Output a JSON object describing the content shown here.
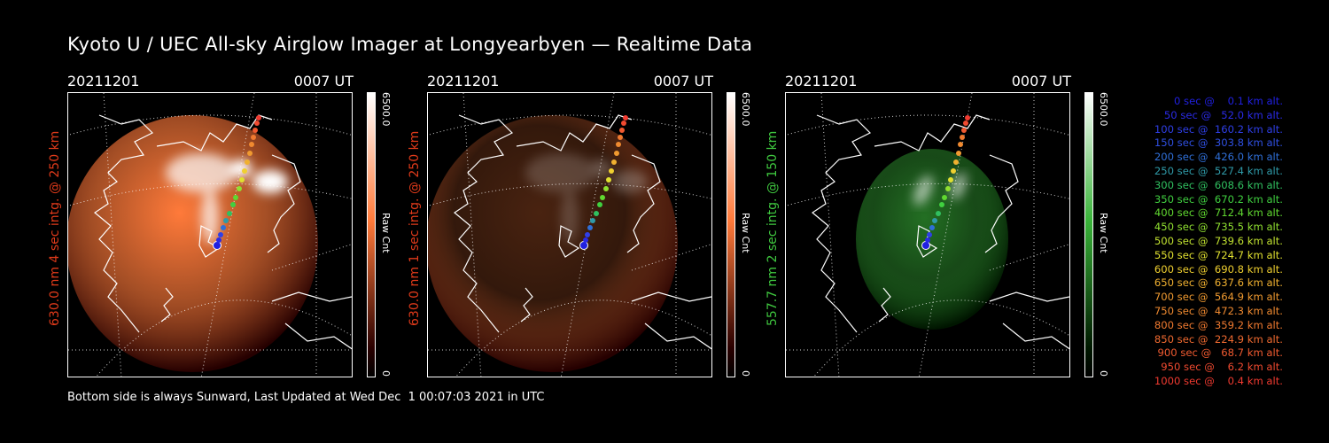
{
  "title": "Kyoto U / UEC All-sky Airglow Imager at Longyearbyen — Realtime Data",
  "panels": [
    {
      "date": "20211201",
      "time": "0007 UT",
      "side_label": "630.0 nm 4 sec intg. @ 250 km",
      "side_color": "#e03a1a",
      "scale_max": "6500.0",
      "scale_min": "0",
      "scale_unit": "Raw Cnt",
      "color_hi": "#ffffff",
      "color_mid": "#ff7a3a",
      "color_lo": "#2a0000",
      "brightness": 1.0
    },
    {
      "date": "20211201",
      "time": "0007 UT",
      "side_label": "630.0 nm 1 sec intg. @ 250 km",
      "side_color": "#e03a1a",
      "scale_max": "6500.0",
      "scale_min": "0",
      "scale_unit": "Raw Cnt",
      "color_hi": "#ffffff",
      "color_mid": "#ff7a3a",
      "color_lo": "#2a0000",
      "brightness": 0.25
    },
    {
      "date": "20211201",
      "time": "0007 UT",
      "side_label": "557.7 nm 2 sec intg. @ 150 km",
      "side_color": "#3fc83f",
      "scale_max": "6500.0",
      "scale_min": "0",
      "scale_unit": "Raw Cnt",
      "color_hi": "#ffffff",
      "color_mid": "#39b339",
      "color_lo": "#001800",
      "brightness": 0.6
    }
  ],
  "legend": [
    {
      "text": "  0 sec @    0.1 km alt.",
      "color": "#2020e0"
    },
    {
      "text": " 50 sec @   52.0 km alt.",
      "color": "#2a2ae6"
    },
    {
      "text": "100 sec @  160.2 km alt.",
      "color": "#2f3fe8"
    },
    {
      "text": "150 sec @  303.8 km alt.",
      "color": "#2f4fe0"
    },
    {
      "text": "200 sec @  426.0 km alt.",
      "color": "#2f6fd8"
    },
    {
      "text": "250 sec @  527.4 km alt.",
      "color": "#2f9aa8"
    },
    {
      "text": "300 sec @  608.6 km alt.",
      "color": "#30c060"
    },
    {
      "text": "350 sec @  670.2 km alt.",
      "color": "#40d040"
    },
    {
      "text": "400 sec @  712.4 km alt.",
      "color": "#60d830"
    },
    {
      "text": "450 sec @  735.5 km alt.",
      "color": "#90e030"
    },
    {
      "text": "500 sec @  739.6 km alt.",
      "color": "#c0e030"
    },
    {
      "text": "550 sec @  724.7 km alt.",
      "color": "#e0e030"
    },
    {
      "text": "600 sec @  690.8 km alt.",
      "color": "#f0d030"
    },
    {
      "text": "650 sec @  637.6 km alt.",
      "color": "#f0b030"
    },
    {
      "text": "700 sec @  564.9 km alt.",
      "color": "#f09a30"
    },
    {
      "text": "750 sec @  472.3 km alt.",
      "color": "#f08a30"
    },
    {
      "text": "800 sec @  359.2 km alt.",
      "color": "#f07a30"
    },
    {
      "text": "850 sec @  224.9 km alt.",
      "color": "#f06a30"
    },
    {
      "text": "900 sec @   68.7 km alt.",
      "color": "#f05a30"
    },
    {
      "text": "950 sec @    6.2 km alt.",
      "color": "#f04a30"
    },
    {
      "text": "1000 sec @    0.4 km alt.",
      "color": "#f03a30"
    }
  ],
  "footer": "Bottom side is always Sunward, Last Updated at Wed Dec  1 00:07:03 2021 in UTC"
}
